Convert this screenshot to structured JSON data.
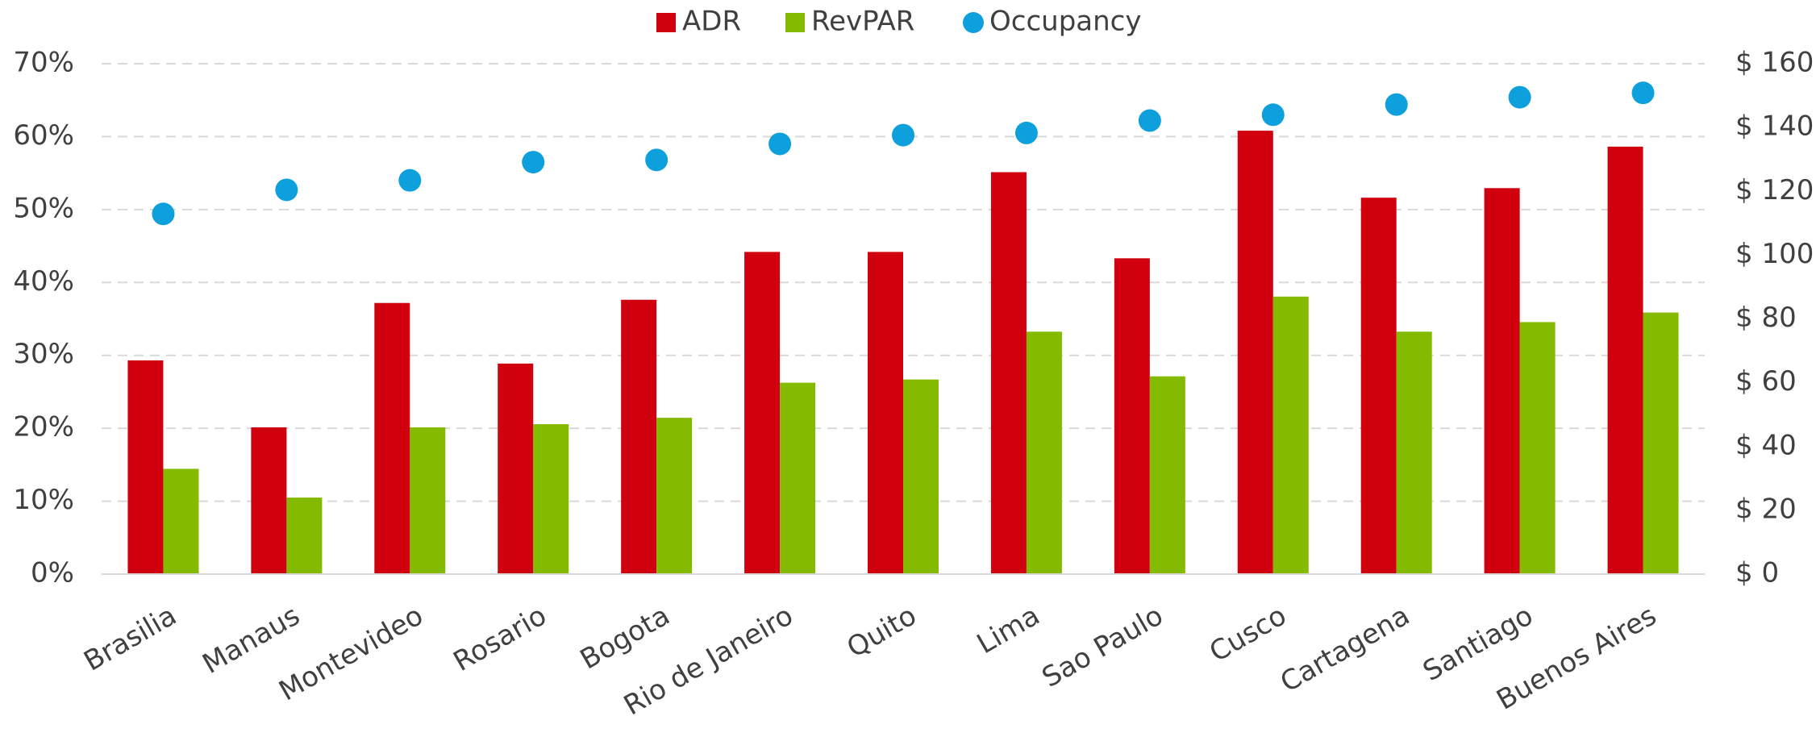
{
  "chart_data": {
    "type": "bar",
    "categories": [
      "Brasilia",
      "Manaus",
      "Montevideo",
      "Rosario",
      "Bogota",
      "Rio de Janeiro",
      "Quito",
      "Lima",
      "Sao Paulo",
      "Cusco",
      "Cartagena",
      "Santiago",
      "Buenos Aires"
    ],
    "series": [
      {
        "name": "ADR",
        "color": "#d0000f",
        "axis": "y2",
        "type": "bar",
        "values": [
          67,
          46,
          85,
          66,
          86,
          101,
          101,
          126,
          99,
          139,
          118,
          121,
          134
        ]
      },
      {
        "name": "RevPAR",
        "color": "#84bb00",
        "axis": "y2",
        "type": "bar",
        "values": [
          33,
          24,
          46,
          47,
          49,
          60,
          61,
          76,
          62,
          87,
          76,
          79,
          82
        ]
      },
      {
        "name": "Occupancy",
        "color": "#0ea0dc",
        "type": "scatter",
        "values": [
          49.4,
          52.7,
          54.0,
          56.5,
          56.8,
          59.0,
          60.2,
          60.5,
          62.2,
          63.0,
          64.4,
          65.4,
          66.0
        ]
      }
    ],
    "ylim": [
      0,
      70
    ],
    "yticks": [
      {
        "value": 0,
        "label": "0%"
      },
      {
        "value": 10,
        "label": "10%"
      },
      {
        "value": 20,
        "label": "20%"
      },
      {
        "value": 30,
        "label": "30%"
      },
      {
        "value": 40,
        "label": "40%"
      },
      {
        "value": 50,
        "label": "50%"
      },
      {
        "value": 60,
        "label": "60%"
      },
      {
        "value": 70,
        "label": "70%"
      }
    ],
    "y2lim": [
      0,
      160
    ],
    "y2ticks": [
      {
        "value": 0,
        "label": "$ 0"
      },
      {
        "value": 20,
        "label": "$ 20"
      },
      {
        "value": 40,
        "label": "$ 40"
      },
      {
        "value": 60,
        "label": "$ 60"
      },
      {
        "value": 80,
        "label": "$ 80"
      },
      {
        "value": 100,
        "label": "$ 100"
      },
      {
        "value": 120,
        "label": "$ 120"
      },
      {
        "value": 140,
        "label": "$ 140"
      },
      {
        "value": 160,
        "label": "$ 160"
      }
    ],
    "grid": true,
    "legend": "top"
  }
}
